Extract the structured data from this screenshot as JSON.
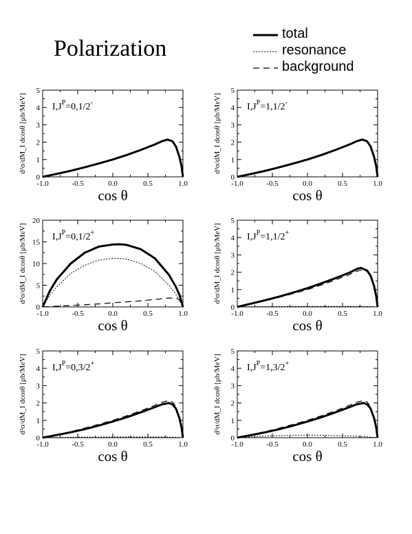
{
  "title": "Polarization",
  "legend": [
    {
      "label": "total",
      "style": "solid"
    },
    {
      "label": "resonance",
      "style": "dotted"
    },
    {
      "label": "background",
      "style": "dashed"
    }
  ],
  "chart_data": [
    {
      "type": "line",
      "panel_label": {
        "main": "I,J",
        "sup": "P",
        "tail": "=0,1/2",
        "tail_sup": "-"
      },
      "xlabel": "cos θ",
      "ylabel": "d²σ/dM_I dcosθ [μb/MeV]",
      "xlim": [
        -1,
        1
      ],
      "ylim": [
        0,
        5
      ],
      "xticks": [
        -1.0,
        -0.5,
        0.0,
        0.5,
        1.0
      ],
      "xtick_labels": [
        "-1.0",
        "-0.5",
        "0.0",
        "0.5",
        "1.0"
      ],
      "yticks": [
        0,
        1,
        2,
        3,
        4,
        5
      ],
      "ytick_labels": [
        "0",
        "1",
        "2",
        "3",
        "4",
        "5"
      ],
      "x": [
        -1.0,
        -0.8,
        -0.6,
        -0.4,
        -0.2,
        0.0,
        0.2,
        0.4,
        0.6,
        0.7,
        0.78,
        0.85,
        0.9,
        0.95,
        0.98,
        1.0
      ],
      "series": [
        {
          "name": "total",
          "style": "solid",
          "values": [
            0.0,
            0.17,
            0.35,
            0.55,
            0.77,
            1.0,
            1.26,
            1.55,
            1.87,
            2.05,
            2.15,
            2.05,
            1.75,
            1.15,
            0.6,
            0.0
          ]
        },
        {
          "name": "resonance",
          "style": "dotted",
          "values": [
            0.0,
            0.0,
            0.0,
            0.0,
            0.0,
            0.0,
            0.0,
            0.0,
            0.0,
            0.0,
            0.0,
            0.0,
            0.0,
            0.0,
            0.0,
            0.0
          ]
        },
        {
          "name": "background",
          "style": "dashed",
          "values": [
            0.0,
            0.17,
            0.35,
            0.55,
            0.77,
            1.0,
            1.26,
            1.55,
            1.87,
            2.05,
            2.15,
            2.05,
            1.75,
            1.15,
            0.6,
            0.0
          ]
        }
      ]
    },
    {
      "type": "line",
      "panel_label": {
        "main": "I,J",
        "sup": "P",
        "tail": "=1,1/2",
        "tail_sup": "-"
      },
      "xlabel": "cos θ",
      "ylabel": "d²σ/dM_I dcosθ [μb/MeV]",
      "xlim": [
        -1,
        1
      ],
      "ylim": [
        0,
        5
      ],
      "xticks": [
        -1.0,
        -0.5,
        0.0,
        0.5,
        1.0
      ],
      "xtick_labels": [
        "-1.0",
        "-0.5",
        "0.0",
        "0.5",
        "1.0"
      ],
      "yticks": [
        0,
        1,
        2,
        3,
        4,
        5
      ],
      "ytick_labels": [
        "0",
        "1",
        "2",
        "3",
        "4",
        "5"
      ],
      "x": [
        -1.0,
        -0.8,
        -0.6,
        -0.4,
        -0.2,
        0.0,
        0.2,
        0.4,
        0.6,
        0.7,
        0.78,
        0.85,
        0.9,
        0.95,
        0.98,
        1.0
      ],
      "series": [
        {
          "name": "total",
          "style": "solid",
          "values": [
            0.0,
            0.17,
            0.35,
            0.55,
            0.77,
            1.0,
            1.26,
            1.55,
            1.87,
            2.05,
            2.15,
            2.05,
            1.75,
            1.15,
            0.6,
            0.0
          ]
        },
        {
          "name": "resonance",
          "style": "dotted",
          "values": [
            0.0,
            0.0,
            0.0,
            0.0,
            0.0,
            0.0,
            0.0,
            0.0,
            0.0,
            0.0,
            0.0,
            0.0,
            0.0,
            0.0,
            0.0,
            0.0
          ]
        },
        {
          "name": "background",
          "style": "dashed",
          "values": [
            0.0,
            0.17,
            0.35,
            0.55,
            0.77,
            1.0,
            1.26,
            1.55,
            1.87,
            2.05,
            2.15,
            2.05,
            1.75,
            1.15,
            0.6,
            0.0
          ]
        }
      ]
    },
    {
      "type": "line",
      "panel_label": {
        "main": "I,J",
        "sup": "P",
        "tail": "=0,1/2",
        "tail_sup": "+"
      },
      "xlabel": "cos θ",
      "ylabel": "d²σ/dM_I dcosθ [μb/MeV]",
      "xlim": [
        -1,
        1
      ],
      "ylim": [
        0,
        20
      ],
      "xticks": [
        -1.0,
        -0.5,
        0.0,
        0.5,
        1.0
      ],
      "xtick_labels": [
        "-1.0",
        "-0.5",
        "0.0",
        "0.5",
        "1.0"
      ],
      "yticks": [
        0,
        5,
        10,
        15,
        20
      ],
      "ytick_labels": [
        "0",
        "5",
        "10",
        "15",
        "20"
      ],
      "x": [
        -1.0,
        -0.9,
        -0.8,
        -0.6,
        -0.4,
        -0.2,
        0.0,
        0.1,
        0.2,
        0.4,
        0.6,
        0.8,
        0.9,
        0.95,
        1.0
      ],
      "series": [
        {
          "name": "total",
          "style": "solid",
          "values": [
            0.0,
            3.6,
            6.3,
            10.0,
            12.5,
            13.9,
            14.4,
            14.45,
            14.3,
            13.3,
            11.2,
            7.4,
            4.6,
            2.8,
            0.0
          ]
        },
        {
          "name": "resonance",
          "style": "dotted",
          "values": [
            0.0,
            2.6,
            4.6,
            7.7,
            9.6,
            10.8,
            11.2,
            11.2,
            11.0,
            10.0,
            8.2,
            5.0,
            2.9,
            1.6,
            0.0
          ]
        },
        {
          "name": "background",
          "style": "dashed",
          "values": [
            0.0,
            0.08,
            0.16,
            0.33,
            0.5,
            0.7,
            0.95,
            1.05,
            1.17,
            1.42,
            1.72,
            2.05,
            2.05,
            1.6,
            0.0
          ]
        }
      ]
    },
    {
      "type": "line",
      "panel_label": {
        "main": "I,J",
        "sup": "P",
        "tail": "=1,1/2",
        "tail_sup": "+"
      },
      "xlabel": "cos θ",
      "ylabel": "d²σ/dM_I dcosθ [μb/MeV]",
      "xlim": [
        -1,
        1
      ],
      "ylim": [
        0,
        5
      ],
      "xticks": [
        -1.0,
        -0.5,
        0.0,
        0.5,
        1.0
      ],
      "xtick_labels": [
        "-1.0",
        "-0.5",
        "0.0",
        "0.5",
        "1.0"
      ],
      "yticks": [
        0,
        1,
        2,
        3,
        4,
        5
      ],
      "ytick_labels": [
        "0",
        "1",
        "2",
        "3",
        "4",
        "5"
      ],
      "x": [
        -1.0,
        -0.8,
        -0.6,
        -0.4,
        -0.2,
        0.0,
        0.2,
        0.4,
        0.6,
        0.7,
        0.76,
        0.85,
        0.9,
        0.95,
        0.98,
        1.0
      ],
      "series": [
        {
          "name": "total",
          "style": "solid",
          "values": [
            0.0,
            0.19,
            0.39,
            0.6,
            0.83,
            1.08,
            1.36,
            1.66,
            1.98,
            2.18,
            2.25,
            2.1,
            1.8,
            1.2,
            0.62,
            0.0
          ]
        },
        {
          "name": "resonance",
          "style": "dotted",
          "values": [
            0.0,
            0.01,
            0.02,
            0.02,
            0.03,
            0.03,
            0.03,
            0.03,
            0.03,
            0.03,
            0.03,
            0.02,
            0.02,
            0.01,
            0.0,
            0.0
          ]
        },
        {
          "name": "background",
          "style": "dashed",
          "values": [
            0.0,
            0.17,
            0.35,
            0.55,
            0.77,
            1.0,
            1.26,
            1.55,
            1.87,
            2.05,
            2.12,
            2.05,
            1.75,
            1.15,
            0.6,
            0.0
          ]
        }
      ]
    },
    {
      "type": "line",
      "panel_label": {
        "main": "I,J",
        "sup": "P",
        "tail": "=0,3/2",
        "tail_sup": "+"
      },
      "xlabel": "cos θ",
      "ylabel": "d²σ/dM_I dcosθ [μb/MeV]",
      "xlim": [
        -1,
        1
      ],
      "ylim": [
        0,
        5
      ],
      "xticks": [
        -1.0,
        -0.5,
        0.0,
        0.5,
        1.0
      ],
      "xtick_labels": [
        "-1.0",
        "-0.5",
        "0.0",
        "0.5",
        "1.0"
      ],
      "yticks": [
        0,
        1,
        2,
        3,
        4,
        5
      ],
      "ytick_labels": [
        "0",
        "1",
        "2",
        "3",
        "4",
        "5"
      ],
      "x": [
        -1.0,
        -0.8,
        -0.6,
        -0.4,
        -0.2,
        0.0,
        0.2,
        0.4,
        0.6,
        0.7,
        0.8,
        0.85,
        0.9,
        0.95,
        0.98,
        1.0
      ],
      "series": [
        {
          "name": "total",
          "style": "solid",
          "values": [
            0.0,
            0.15,
            0.31,
            0.49,
            0.7,
            0.93,
            1.18,
            1.46,
            1.76,
            1.92,
            2.0,
            1.92,
            1.68,
            1.12,
            0.58,
            0.0
          ]
        },
        {
          "name": "resonance",
          "style": "dotted",
          "values": [
            0.0,
            0.01,
            0.02,
            0.03,
            0.03,
            0.04,
            0.04,
            0.04,
            0.04,
            0.04,
            0.03,
            0.03,
            0.02,
            0.01,
            0.0,
            0.0
          ]
        },
        {
          "name": "background",
          "style": "dashed",
          "values": [
            0.0,
            0.17,
            0.35,
            0.55,
            0.77,
            1.0,
            1.26,
            1.55,
            1.87,
            2.04,
            2.14,
            2.06,
            1.78,
            1.18,
            0.6,
            0.0
          ]
        }
      ]
    },
    {
      "type": "line",
      "panel_label": {
        "main": "I,J",
        "sup": "P",
        "tail": "=1,3/2",
        "tail_sup": "+"
      },
      "xlabel": "cos θ",
      "ylabel": "d²σ/dM_I dcosθ [μb/MeV]",
      "xlim": [
        -1,
        1
      ],
      "ylim": [
        0,
        5
      ],
      "xticks": [
        -1.0,
        -0.5,
        0.0,
        0.5,
        1.0
      ],
      "xtick_labels": [
        "-1.0",
        "-0.5",
        "0.0",
        "0.5",
        "1.0"
      ],
      "yticks": [
        0,
        1,
        2,
        3,
        4,
        5
      ],
      "ytick_labels": [
        "0",
        "1",
        "2",
        "3",
        "4",
        "5"
      ],
      "x": [
        -1.0,
        -0.8,
        -0.6,
        -0.4,
        -0.2,
        0.0,
        0.2,
        0.4,
        0.6,
        0.7,
        0.8,
        0.85,
        0.9,
        0.95,
        0.98,
        1.0
      ],
      "series": [
        {
          "name": "total",
          "style": "solid",
          "values": [
            0.0,
            0.15,
            0.31,
            0.49,
            0.7,
            0.93,
            1.18,
            1.46,
            1.76,
            1.92,
            2.0,
            1.92,
            1.68,
            1.12,
            0.58,
            0.0
          ]
        },
        {
          "name": "resonance",
          "style": "dotted",
          "values": [
            0.0,
            0.05,
            0.09,
            0.12,
            0.14,
            0.15,
            0.14,
            0.12,
            0.1,
            0.08,
            0.06,
            0.05,
            0.03,
            0.02,
            0.01,
            0.0
          ]
        },
        {
          "name": "background",
          "style": "dashed",
          "values": [
            0.0,
            0.17,
            0.35,
            0.55,
            0.77,
            1.0,
            1.26,
            1.55,
            1.87,
            2.04,
            2.14,
            2.06,
            1.78,
            1.18,
            0.6,
            0.0
          ]
        }
      ]
    }
  ]
}
